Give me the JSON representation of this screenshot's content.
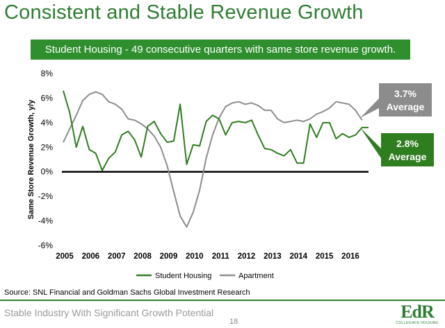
{
  "slide": {
    "title": "Consistent and Stable Revenue Growth",
    "banner": "Student Housing - 49 consecutive quarters with same store revenue growth.",
    "source": "Source: SNL Financial and Goldman Sachs Global Investment Research",
    "footer": "Stable Industry With Significant Growth Potential",
    "page_number": "18",
    "logo": {
      "mark": "EdR",
      "subtitle": "COLLEGIATE HOUSING"
    }
  },
  "colors": {
    "student_housing": "#2e7d1e",
    "apartment": "#8c8c8c",
    "banner": "#2f8f2f",
    "title": "#2e7d32",
    "callout_apartment": "#8c8c8c",
    "callout_student": "#2e7d1e"
  },
  "chart_data": {
    "type": "line",
    "ylabel": "Same Store Revenue Growth, y/y",
    "xlabel": "",
    "ylim": [
      -6,
      8
    ],
    "y_ticks": [
      -6,
      -4,
      -2,
      0,
      2,
      4,
      6,
      8
    ],
    "y_tick_labels": [
      "-6%",
      "-4%",
      "-2%",
      "0%",
      "2%",
      "4%",
      "6%",
      "8%"
    ],
    "x_tick_labels": [
      "2005",
      "2006",
      "2007",
      "2008",
      "2009",
      "2010",
      "2011",
      "2012",
      "2013",
      "2014",
      "2015",
      "2016"
    ],
    "x_range": [
      2005,
      2016.75
    ],
    "zero_line": true,
    "grid": false,
    "legend_position": "bottom",
    "series": [
      {
        "name": "Student Housing",
        "x": [
          2005.0,
          2005.25,
          2005.5,
          2005.75,
          2006.0,
          2006.25,
          2006.5,
          2006.75,
          2007.0,
          2007.25,
          2007.5,
          2007.75,
          2008.0,
          2008.25,
          2008.5,
          2008.75,
          2009.0,
          2009.25,
          2009.5,
          2009.75,
          2010.0,
          2010.25,
          2010.5,
          2010.75,
          2011.0,
          2011.25,
          2011.5,
          2011.75,
          2012.0,
          2012.25,
          2012.5,
          2012.75,
          2013.0,
          2013.25,
          2013.5,
          2013.75,
          2014.0,
          2014.25,
          2014.5,
          2014.75,
          2015.0,
          2015.25,
          2015.5,
          2015.75,
          2016.0,
          2016.25,
          2016.5,
          2016.75
        ],
        "values": [
          6.6,
          4.8,
          2.0,
          3.7,
          1.8,
          1.5,
          0.1,
          1.1,
          1.6,
          3.0,
          3.3,
          2.6,
          1.2,
          3.7,
          4.1,
          3.1,
          2.4,
          2.5,
          5.5,
          0.6,
          2.2,
          2.1,
          4.1,
          4.6,
          4.3,
          3.0,
          4.0,
          4.1,
          4.0,
          4.2,
          3.0,
          1.9,
          1.8,
          1.5,
          1.3,
          1.8,
          0.7,
          0.7,
          3.9,
          2.8,
          4.0,
          4.0,
          2.7,
          3.1,
          2.8,
          3.0,
          3.6,
          3.6
        ]
      },
      {
        "name": "Apartment",
        "x": [
          2005.0,
          2005.25,
          2005.5,
          2005.75,
          2006.0,
          2006.25,
          2006.5,
          2006.75,
          2007.0,
          2007.25,
          2007.5,
          2007.75,
          2008.0,
          2008.25,
          2008.5,
          2008.75,
          2009.0,
          2009.25,
          2009.5,
          2009.75,
          2010.0,
          2010.25,
          2010.5,
          2010.75,
          2011.0,
          2011.25,
          2011.5,
          2011.75,
          2012.0,
          2012.25,
          2012.5,
          2012.75,
          2013.0,
          2013.25,
          2013.5,
          2013.75,
          2014.0,
          2014.25,
          2014.5,
          2014.75,
          2015.0,
          2015.25,
          2015.5,
          2015.75,
          2016.0,
          2016.25,
          2016.5
        ],
        "values": [
          2.4,
          3.5,
          4.6,
          5.8,
          6.3,
          6.5,
          6.3,
          5.7,
          5.5,
          5.1,
          4.3,
          4.2,
          3.9,
          3.5,
          2.9,
          2.0,
          0.5,
          -1.6,
          -3.6,
          -4.5,
          -3.3,
          -1.5,
          1.1,
          3.0,
          4.4,
          5.3,
          5.6,
          5.7,
          5.5,
          5.6,
          5.4,
          5.0,
          5.0,
          4.3,
          4.0,
          4.1,
          4.2,
          4.1,
          4.3,
          4.7,
          4.9,
          5.2,
          5.7,
          5.6,
          5.5,
          5.0,
          4.2
        ]
      }
    ],
    "legend": [
      "Student Housing",
      "Apartment"
    ],
    "annotations": [
      {
        "text": [
          "3.7%",
          "Average"
        ],
        "series": "Apartment"
      },
      {
        "text": [
          "2.8%",
          "Average"
        ],
        "series": "Student Housing"
      }
    ]
  }
}
